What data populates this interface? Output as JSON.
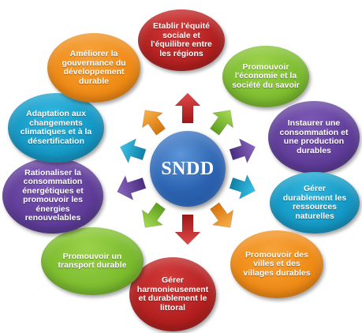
{
  "hub": {
    "label": "SNDD",
    "color": "#2b62b0"
  },
  "nodes": [
    {
      "id": "equite",
      "label": "Etablir l'équité sociale et l'équilibre entre les régions",
      "color": "red"
    },
    {
      "id": "economie-savoir",
      "label": "Promouvoir l'économie et la société du savoir",
      "color": "green"
    },
    {
      "id": "consommation-production",
      "label": "Instaurer une consommation et une production durables",
      "color": "purple"
    },
    {
      "id": "ressources",
      "label": "Gérer durablement les ressources naturelles",
      "color": "teal"
    },
    {
      "id": "villes-villages",
      "label": "Promouvoir des villes et des villages durables",
      "color": "orange"
    },
    {
      "id": "littoral",
      "label": "Gérer harmonieusement et durablement le littoral",
      "color": "red"
    },
    {
      "id": "transport",
      "label": "Promouvoir un transport durable",
      "color": "green"
    },
    {
      "id": "energie",
      "label": "Rationaliser la consommation énergétiques et promouvoir les énergies renouvelables",
      "color": "purple"
    },
    {
      "id": "climat",
      "label": "Adaptation aux changements climatiques et à la désertification",
      "color": "teal"
    },
    {
      "id": "gouvernance",
      "label": "Améliorer la gouvernance du développement durable",
      "color": "orange"
    }
  ],
  "colors": {
    "red": "#b31f1f",
    "green": "#7bbb2e",
    "purple": "#5e3c98",
    "teal": "#1497c4",
    "orange": "#ef8a15"
  }
}
